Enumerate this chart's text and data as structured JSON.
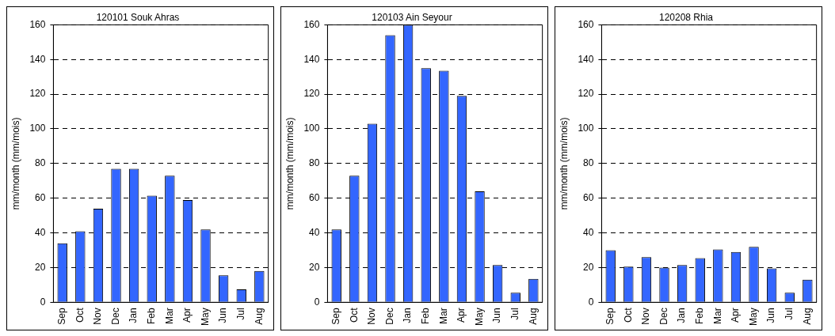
{
  "chart_data": [
    {
      "type": "bar",
      "title": "120101 Souk Ahras",
      "ylabel": "mm/month (mm/mois)",
      "categories": [
        "Sep",
        "Oct",
        "Nov",
        "Dec",
        "Jan",
        "Feb",
        "Mar",
        "Apr",
        "May",
        "Jun",
        "Jul",
        "Aug"
      ],
      "values": [
        34,
        41,
        54,
        77,
        77,
        61.5,
        73,
        59,
        42,
        15.5,
        7.5,
        18
      ],
      "color": "#3366ff",
      "ylim": [
        0,
        160
      ],
      "yticks": [
        0,
        20,
        40,
        60,
        80,
        100,
        120,
        140,
        160
      ],
      "grid": "y",
      "legend": false
    },
    {
      "type": "bar",
      "title": "120103 Ain Seyour",
      "ylabel": "mm/month (mm/mois)",
      "categories": [
        "Sep",
        "Oct",
        "Nov",
        "Dec",
        "Jan",
        "Feb",
        "Mar",
        "Apr",
        "May",
        "Jun",
        "Jul",
        "Aug"
      ],
      "values": [
        42,
        73,
        103,
        154,
        160,
        135,
        133.5,
        119,
        64,
        21.5,
        5.5,
        13.5
      ],
      "color": "#3366ff",
      "ylim": [
        0,
        160
      ],
      "yticks": [
        0,
        20,
        40,
        60,
        80,
        100,
        120,
        140,
        160
      ],
      "grid": "y",
      "legend": false
    },
    {
      "type": "bar",
      "title": "120208 Rhia",
      "ylabel": "mm/month (mm/mois)",
      "categories": [
        "Sep",
        "Oct",
        "Nov",
        "Dec",
        "Jan",
        "Feb",
        "Mar",
        "Apr",
        "May",
        "Jun",
        "Jul",
        "Aug"
      ],
      "values": [
        30,
        20.5,
        26,
        20,
        21.5,
        25.5,
        30.5,
        29,
        32,
        19.5,
        5.5,
        13
      ],
      "color": "#3366ff",
      "ylim": [
        0,
        160
      ],
      "yticks": [
        0,
        20,
        40,
        60,
        80,
        100,
        120,
        140,
        160
      ],
      "grid": "y",
      "legend": false
    }
  ]
}
